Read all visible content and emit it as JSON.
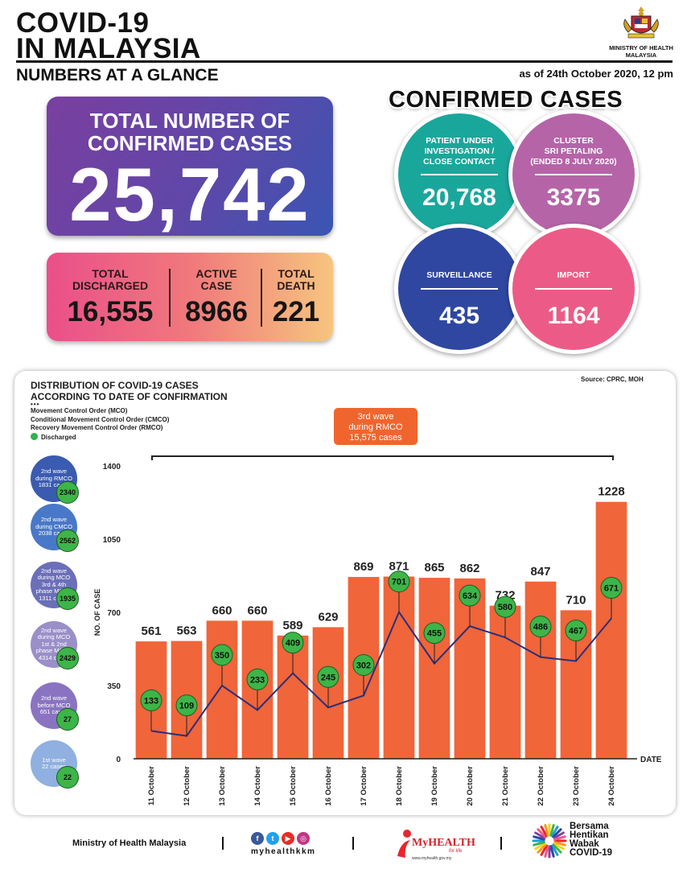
{
  "header": {
    "title_line1": "COVID-19",
    "title_line2": "IN MALAYSIA",
    "subtitle": "NUMBERS AT A GLANCE",
    "as_of": "as of 24th October 2020, 12 pm",
    "ministry_line1": "MINISTRY OF HEALTH",
    "ministry_line2": "MALAYSIA"
  },
  "total": {
    "label_line1": "TOTAL NUMBER OF",
    "label_line2": "CONFIRMED CASES",
    "value": "25,742"
  },
  "stats": {
    "discharged_label1": "TOTAL",
    "discharged_label2": "DISCHARGED",
    "discharged_value": "16,555",
    "active_label1": "ACTIVE",
    "active_label2": "CASE",
    "active_value": "8966",
    "death_label1": "TOTAL",
    "death_label2": "DEATH",
    "death_value": "221"
  },
  "confirmed": {
    "title": "CONFIRMED CASES",
    "pui_label1": "PATIENT UNDER",
    "pui_label2": "INVESTIGATION /",
    "pui_label3": "CLOSE CONTACT",
    "pui_value": "20,768",
    "cluster_label1": "CLUSTER",
    "cluster_label2": "SRI PETALING",
    "cluster_label3": "(ENDED 8 JULY 2020)",
    "cluster_value": "3375",
    "surveillance_label": "SURVEILLANCE",
    "surveillance_value": "435",
    "import_label": "IMPORT",
    "import_value": "1164",
    "colors": {
      "pui": "#1aa79b",
      "cluster": "#b564a8",
      "surveillance": "#2f47a1",
      "import": "#ec5b87"
    }
  },
  "chart_panel": {
    "title_line1": "DISTRIBUTION OF COVID-19 CASES",
    "title_line2": "ACCORDING TO DATE OF CONFIRMATION",
    "source": "Source: CPRC, MOH",
    "legend_dots": "•••",
    "legend_mco": "Movement Control Order (MCO)",
    "legend_cmco": "Conditional Movement Control Order (CMCO)",
    "legend_rmco": "Recovery Movement Control Order (RMCO)",
    "legend_discharged": "Discharged",
    "wave_line1": "3rd wave",
    "wave_line2": "during RMCO",
    "wave_line3": "15,575 cases"
  },
  "waves": [
    {
      "l1": "2nd wave",
      "l2": "during RMCO",
      "l3": "1831 cases",
      "l4": "",
      "discharged": "2340",
      "color": "#3a5bb0"
    },
    {
      "l1": "2nd wave",
      "l2": "during CMCO",
      "l3": "2038 cases",
      "l4": "",
      "discharged": "2562",
      "color": "#4a78c8"
    },
    {
      "l1": "2nd wave",
      "l2": "during MCO",
      "l3": "3rd & 4th",
      "l4": "phase MCO - 1311 cases",
      "discharged": "1935",
      "color": "#6b6fb8"
    },
    {
      "l1": "2nd wave",
      "l2": "during MCO",
      "l3": "1st & 2nd",
      "l4": "phase MCO - 4314 cases",
      "discharged": "2429",
      "color": "#9a8fc8"
    },
    {
      "l1": "2nd wave",
      "l2": "before MCO",
      "l3": "651 cases",
      "l4": "",
      "discharged": "27",
      "color": "#8a74c2"
    },
    {
      "l1": "1st wave",
      "l2": "22 cases",
      "l3": "",
      "l4": "",
      "discharged": "22",
      "color": "#8fb0e0"
    }
  ],
  "chart_data": {
    "type": "bar",
    "categories": [
      "11 October",
      "12 October",
      "13 October",
      "14 October",
      "15 October",
      "16 October",
      "17 October",
      "18 October",
      "19 October",
      "20 October",
      "21 October",
      "22 October",
      "23 October",
      "24 October"
    ],
    "series": [
      {
        "values": [
          561,
          563,
          660,
          660,
          589,
          629,
          869,
          871,
          865,
          862,
          732,
          847,
          710,
          1228
        ],
        "color": "#f0653a"
      },
      {
        "name": "Discharged",
        "type": "line",
        "values": [
          133,
          109,
          350,
          233,
          409,
          245,
          302,
          701,
          455,
          634,
          580,
          486,
          467,
          671
        ],
        "color": "#2a2f7a"
      }
    ],
    "ylim": [
      0,
      1400
    ],
    "yticks": [
      0,
      350,
      700,
      1050,
      1400
    ],
    "ylabel": "NO. OF CASE",
    "xlabel": "DATE"
  },
  "footer": {
    "ministry": "Ministry of Health Malaysia",
    "social_handle": "myhealthkkm",
    "myhealth": "MyHEALTH",
    "myhealth_tag": "for life",
    "myhealth_url": "www.myhealth.gov.my",
    "bersama_1": "Bersama",
    "bersama_2": "Hentikan",
    "bersama_3": "Wabak",
    "bersama_4": "COVID-19"
  }
}
